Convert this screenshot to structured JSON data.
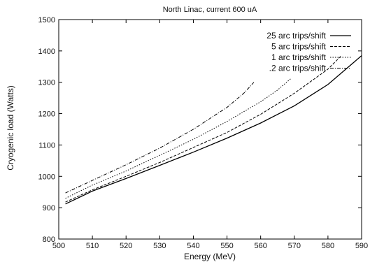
{
  "chart_data": {
    "type": "line",
    "title": "North Linac, current 600 uA",
    "xlabel": "Energy (MeV)",
    "ylabel": "Cryogenic load (Watts)",
    "xlim": [
      500,
      590
    ],
    "ylim": [
      800,
      1500
    ],
    "x_ticks": [
      500,
      510,
      520,
      530,
      540,
      550,
      560,
      570,
      580,
      590
    ],
    "y_ticks": [
      800,
      900,
      1000,
      1100,
      1200,
      1300,
      1400,
      1500
    ],
    "grid": false,
    "legend_position": "top-right",
    "series": [
      {
        "name": "25 arc trips/shift",
        "dash": "solid",
        "color": "#000000",
        "x": [
          502,
          510,
          520,
          530,
          540,
          550,
          560,
          570,
          580,
          590
        ],
        "y": [
          912,
          953,
          993,
          1035,
          1077,
          1122,
          1170,
          1225,
          1293,
          1385
        ]
      },
      {
        "name": "5 arc trips/shift",
        "dash": "dashed",
        "color": "#000000",
        "x": [
          502,
          510,
          520,
          530,
          540,
          550,
          560,
          570,
          580,
          584
        ],
        "y": [
          918,
          957,
          1000,
          1044,
          1092,
          1140,
          1198,
          1265,
          1342,
          1385
        ]
      },
      {
        "name": "1 arc trips/shift",
        "dash": "dotted",
        "color": "#000000",
        "x": [
          502,
          510,
          520,
          530,
          540,
          550,
          560,
          565,
          569
        ],
        "y": [
          930,
          972,
          1017,
          1067,
          1118,
          1175,
          1238,
          1275,
          1312
        ]
      },
      {
        "name": ".2 arc trips/shift",
        "dash": "dash-dot",
        "color": "#000000",
        "x": [
          502,
          510,
          520,
          530,
          540,
          550,
          555,
          558
        ],
        "y": [
          947,
          987,
          1037,
          1090,
          1150,
          1220,
          1265,
          1300
        ]
      }
    ]
  }
}
